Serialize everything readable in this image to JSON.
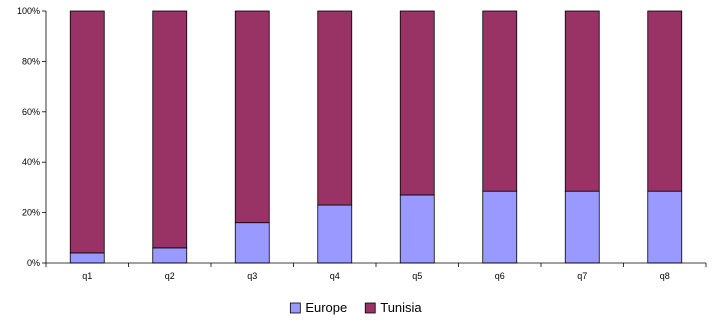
{
  "chart_data": {
    "type": "bar",
    "stacked": true,
    "percent": true,
    "title": "",
    "xlabel": "",
    "ylabel": "",
    "categories": [
      "q1",
      "q2",
      "q3",
      "q4",
      "q5",
      "q6",
      "q7",
      "q8"
    ],
    "series": [
      {
        "name": "Europe",
        "color": "#9999FF",
        "values": [
          4,
          6,
          16,
          23,
          27,
          28.5,
          28.5,
          28.5
        ]
      },
      {
        "name": "Tunisia",
        "color": "#993366",
        "values": [
          96,
          94,
          84,
          77,
          73,
          71.5,
          71.5,
          71.5
        ]
      }
    ],
    "ylim": [
      0,
      100
    ],
    "y_ticks": [
      "0%",
      "20%",
      "40%",
      "60%",
      "80%",
      "100%"
    ],
    "grid": false,
    "legend": "bottom"
  }
}
